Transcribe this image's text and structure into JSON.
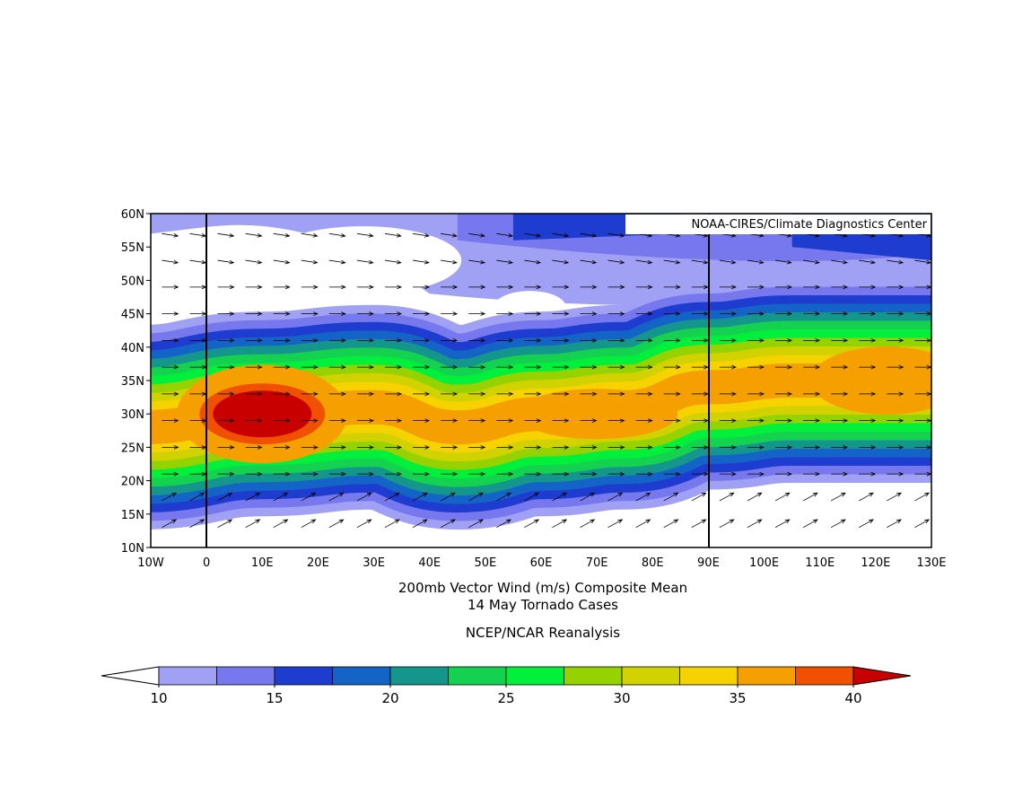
{
  "map": {
    "credit": "NOAA-CIRES/Climate Diagnostics Center",
    "xticks": [
      "10W",
      "0",
      "10E",
      "20E",
      "30E",
      "40E",
      "50E",
      "60E",
      "70E",
      "80E",
      "90E",
      "100E",
      "110E",
      "120E",
      "130E"
    ],
    "yticks": [
      "60N",
      "55N",
      "50N",
      "45N",
      "40N",
      "35N",
      "30N",
      "25N",
      "20N",
      "15N",
      "10N"
    ],
    "title": [
      "200mb Vector Wind (m/s) Composite Mean",
      "14 May Tornado Cases"
    ],
    "source": "NCEP/NCAR Reanalysis",
    "colorbar": {
      "colors": [
        "#ffffff",
        "#a0a0f5",
        "#7878ee",
        "#1e3ccf",
        "#1464c8",
        "#14968c",
        "#14d250",
        "#00f03c",
        "#96d200",
        "#d2d200",
        "#f5d200",
        "#f5a000",
        "#f05000",
        "#c80000"
      ],
      "range": [
        10,
        40
      ],
      "ticks": [
        10,
        15,
        20,
        25,
        30,
        35,
        40
      ]
    }
  }
}
